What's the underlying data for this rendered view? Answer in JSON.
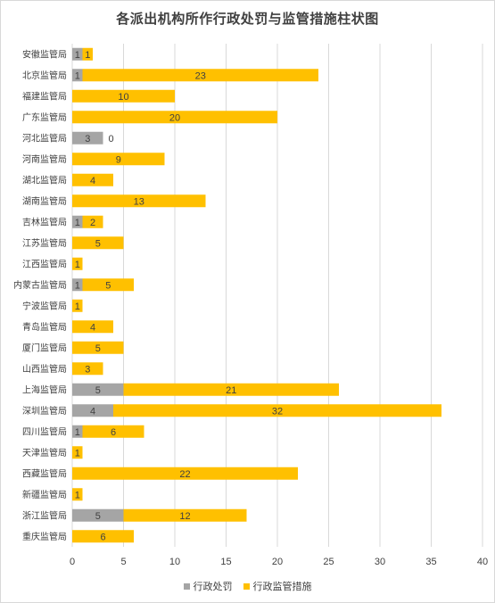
{
  "chart_data": {
    "type": "bar",
    "orientation": "horizontal",
    "stacked": true,
    "title": "各派出机构所作行政处罚与监管措施柱状图",
    "xlim": [
      0,
      40
    ],
    "xticks": [
      0,
      5,
      10,
      15,
      20,
      25,
      30,
      35,
      40
    ],
    "grid": true,
    "legend_position": "bottom",
    "categories": [
      "安徽监管局",
      "北京监管局",
      "福建监管局",
      "广东监管局",
      "河北监管局",
      "河南监管局",
      "湖北监管局",
      "湖南监管局",
      "吉林监管局",
      "江苏监管局",
      "江西监管局",
      "内蒙古监管局",
      "宁波监管局",
      "青岛监管局",
      "厦门监管局",
      "山西监管局",
      "上海监管局",
      "深圳监管局",
      "四川监管局",
      "天津监管局",
      "西藏监管局",
      "新疆监管局",
      "浙江监管局",
      "重庆监管局"
    ],
    "series": [
      {
        "name": "行政处罚",
        "color": "#a5a5a5",
        "values": [
          1,
          1,
          0,
          0,
          3,
          0,
          0,
          0,
          1,
          0,
          0,
          1,
          0,
          0,
          0,
          0,
          5,
          4,
          1,
          0,
          0,
          0,
          5,
          0
        ]
      },
      {
        "name": "行政监管措施",
        "color": "#ffc000",
        "values": [
          1,
          23,
          10,
          20,
          0,
          9,
          4,
          13,
          2,
          5,
          1,
          5,
          1,
          4,
          5,
          3,
          21,
          32,
          6,
          1,
          22,
          1,
          12,
          6
        ]
      }
    ]
  }
}
